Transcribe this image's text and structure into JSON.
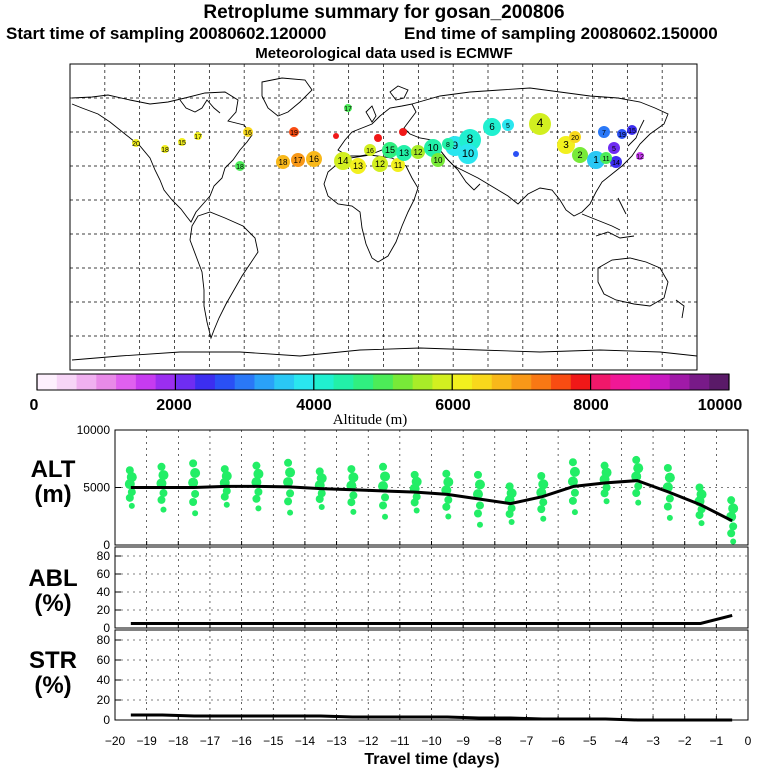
{
  "header": {
    "title": "Retroplume summary for gosan_200806",
    "start_label": "Start time of sampling 20080602.120000",
    "end_label": "End time of sampling 20080602.150000",
    "met_label": "Meteorological data used is ECMWF"
  },
  "colorbar": {
    "axis_label": "Altitude (m)",
    "tick_labels": [
      "0",
      "2000",
      "4000",
      "6000",
      "8000",
      "10000"
    ],
    "colors": [
      "#fdf0fd",
      "#f7d5f7",
      "#f0b0f0",
      "#e88ae8",
      "#df60ef",
      "#c63bf0",
      "#9b2ef0",
      "#6f2df2",
      "#3c2ef0",
      "#2a50f5",
      "#2a78f7",
      "#2aa2f8",
      "#2ac8f5",
      "#2ae6ef",
      "#20f0d0",
      "#22f0a8",
      "#30ef80",
      "#4cec58",
      "#78ea38",
      "#a8ec28",
      "#d2ef20",
      "#f2f01e",
      "#f8d81c",
      "#f8b81a",
      "#f89818",
      "#f87814",
      "#f84c12",
      "#f01818",
      "#f0186a",
      "#f01896",
      "#e818b4",
      "#c81ac0",
      "#a01aa8",
      "#781a88",
      "#5a1a68"
    ]
  },
  "map": {
    "plume_labels": [
      "20",
      "18",
      "15",
      "17",
      "16",
      "19",
      "18",
      "17",
      "16",
      "14",
      "13",
      "12",
      "11",
      "15",
      "13",
      "12",
      "10",
      "10",
      "9",
      "8",
      "6",
      "5",
      "4",
      "3",
      "2",
      "1",
      "7",
      "5",
      "19",
      "15",
      "14",
      "12",
      "11",
      "20",
      "10",
      "8",
      "16",
      "18",
      "17"
    ]
  },
  "chart_data": [
    {
      "type": "line",
      "name": "ALT",
      "title": "",
      "ylabel": "ALT (m)",
      "ylim": [
        0,
        10000
      ],
      "y_ticks": [
        "10000",
        "5000",
        "0"
      ],
      "x": [
        -19.5,
        -18.5,
        -17.5,
        -16.5,
        -15.5,
        -14.5,
        -13.5,
        -12.5,
        -11.5,
        -10.5,
        -9.5,
        -8.5,
        -7.5,
        -6.5,
        -5.5,
        -4.5,
        -3.5,
        -2.5,
        -1.5,
        -0.5
      ],
      "values": [
        5000,
        5000,
        5000,
        5100,
        5100,
        5050,
        4900,
        4800,
        4700,
        4600,
        4400,
        4000,
        3600,
        4200,
        5100,
        5400,
        5600,
        4600,
        3500,
        2100
      ],
      "scatter_color": "#22ee66"
    },
    {
      "type": "line",
      "name": "ABL",
      "ylabel": "ABL (%)",
      "ylim": [
        0,
        90
      ],
      "y_ticks": [
        "80",
        "60",
        "40",
        "20",
        "0"
      ],
      "x": [
        -19.5,
        -18.5,
        -17.5,
        -16.5,
        -15.5,
        -14.5,
        -13.5,
        -12.5,
        -11.5,
        -10.5,
        -9.5,
        -8.5,
        -7.5,
        -6.5,
        -5.5,
        -4.5,
        -3.5,
        -2.5,
        -1.5,
        -0.5
      ],
      "values": [
        5,
        5,
        5,
        5,
        5,
        5,
        5,
        5,
        5,
        5,
        5,
        5,
        5,
        5,
        5,
        5,
        5,
        5,
        5,
        14
      ]
    },
    {
      "type": "line",
      "name": "STR",
      "ylabel": "STR (%)",
      "ylim": [
        0,
        90
      ],
      "y_ticks": [
        "80",
        "60",
        "40",
        "20",
        "0"
      ],
      "x": [
        -19.5,
        -18.5,
        -17.5,
        -16.5,
        -15.5,
        -14.5,
        -13.5,
        -12.5,
        -11.5,
        -10.5,
        -9.5,
        -8.5,
        -7.5,
        -6.5,
        -5.5,
        -4.5,
        -3.5,
        -2.5,
        -1.5,
        -0.5
      ],
      "values": [
        5,
        5,
        4,
        4,
        4,
        4,
        4,
        3,
        3,
        3,
        3,
        2,
        2,
        1,
        1,
        1,
        0,
        0,
        0,
        0
      ],
      "xlabel": "Travel time (days)",
      "x_ticks": [
        "-20",
        "-19",
        "-18",
        "-17",
        "-16",
        "-15",
        "-14",
        "-13",
        "-12",
        "-11",
        "-10",
        "-9",
        "-8",
        "-7",
        "-6",
        "-5",
        "-4",
        "-3",
        "-2",
        "-1",
        "0"
      ]
    }
  ],
  "panel_labels": {
    "alt": [
      "ALT",
      "(m)"
    ],
    "abl": [
      "ABL",
      "(%)"
    ],
    "str": [
      "STR",
      "(%)"
    ]
  }
}
